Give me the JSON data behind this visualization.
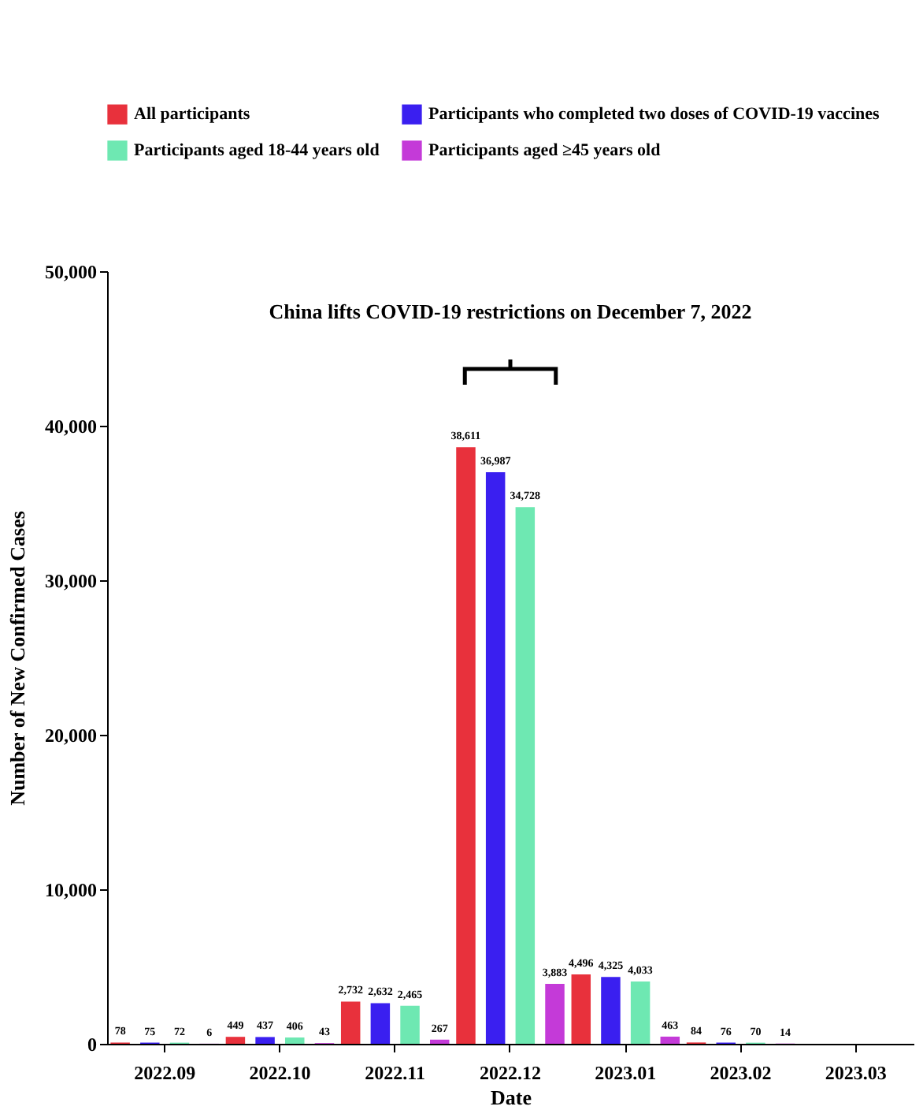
{
  "chart_data": {
    "type": "bar",
    "xlabel": "Date",
    "ylabel": "Number of New Confirmed Cases",
    "categories": [
      "2022.09",
      "2022.10",
      "2022.11",
      "2022.12",
      "2023.01",
      "2023.02",
      "2023.03"
    ],
    "series": [
      {
        "name": "All participants",
        "color": "#e8313c",
        "values": [
          78,
          449,
          2732,
          38611,
          4496,
          84,
          null
        ],
        "value_labels": [
          "78",
          "449",
          "2,732",
          "38,611",
          "4,496",
          "84",
          null
        ]
      },
      {
        "name": "Participants who completed two doses of COVID-19 vaccines",
        "color": "#3a1ff0",
        "values": [
          75,
          437,
          2632,
          36987,
          4325,
          76,
          null
        ],
        "value_labels": [
          "75",
          "437",
          "2,632",
          "36,987",
          "4,325",
          "76",
          null
        ]
      },
      {
        "name": "Participants aged 18-44 years old",
        "color": "#6ee8b2",
        "values": [
          72,
          406,
          2465,
          34728,
          4033,
          70,
          null
        ],
        "value_labels": [
          "72",
          "406",
          "2,465",
          "34,728",
          "4,033",
          "70",
          null
        ]
      },
      {
        "name": "Participants aged ≥45 years old",
        "color": "#c43ad8",
        "values": [
          6,
          43,
          267,
          3883,
          463,
          14,
          null
        ],
        "value_labels": [
          "6",
          "43",
          "267",
          "3,883",
          "463",
          "14",
          null
        ]
      }
    ],
    "ylim": [
      0,
      50000
    ],
    "yticks": [
      0,
      {
        "value": 10000,
        "label": "10,000"
      },
      {
        "value": 20000,
        "label": "20,000"
      },
      {
        "value": 30000,
        "label": "30,000"
      },
      {
        "value": 40000,
        "label": "40,000"
      },
      {
        "value": 50000,
        "label": "50,000"
      }
    ],
    "legend": "top",
    "annotations": [
      "China lifts COVID-19 restrictions on December 7, 2022"
    ]
  }
}
